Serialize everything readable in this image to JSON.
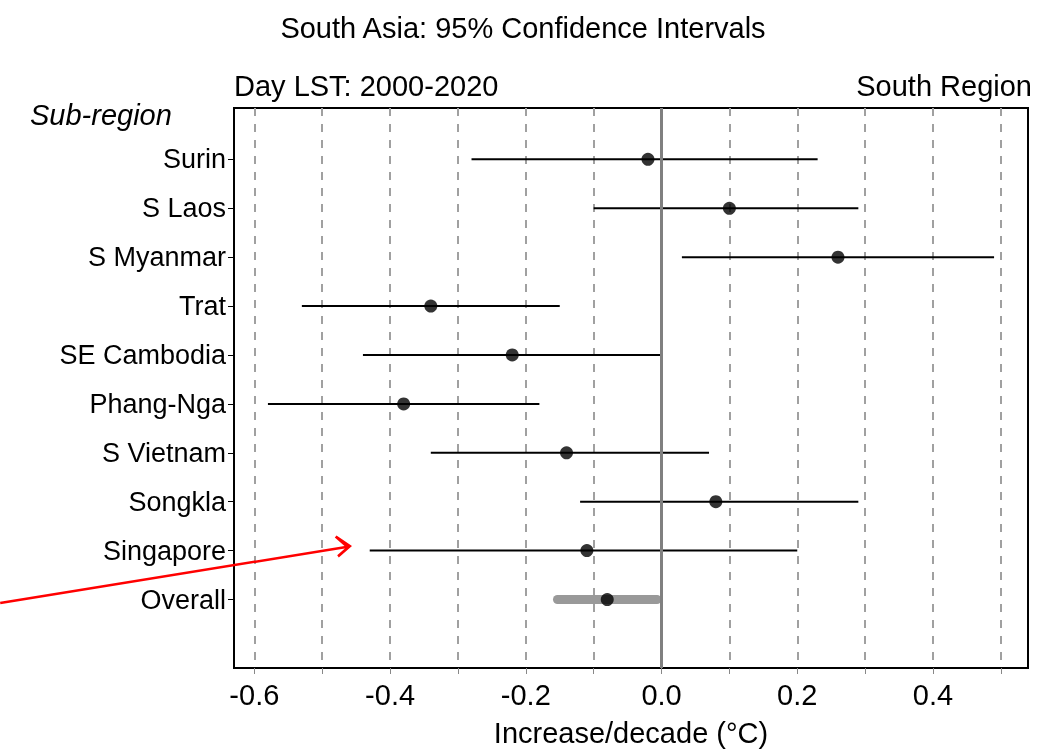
{
  "chart_data": {
    "type": "scatter",
    "title": "South Asia: 95% Confidence Intervals",
    "xlabel": "Increase/decade (°C)",
    "ylabel": "Sub-region",
    "annotations": [
      "Day LST: 2000-2020",
      "South Region"
    ],
    "categories": [
      "Surin",
      "S Laos",
      "S Myanmar",
      "Trat",
      "SE Cambodia",
      "Phang-Nga",
      "S Vietnam",
      "Songkla",
      "Singapore",
      "Overall"
    ],
    "series": [
      {
        "type": "bar",
        "color": "#999999",
        "values": [
          null,
          null,
          null,
          null,
          null,
          null,
          null,
          null,
          null,
          0.16
        ],
        "base": [
          null,
          null,
          null,
          null,
          null,
          null,
          null,
          null,
          null,
          -0.16
        ]
      },
      {
        "color": "#000000",
        "values": [
          -0.02,
          0.1,
          0.26,
          -0.34,
          -0.22,
          -0.38,
          -0.14,
          0.08,
          -0.11,
          -0.08
        ],
        "errors": [
          [
            -0.28,
            0.23
          ],
          [
            -0.1,
            0.29
          ],
          [
            0.03,
            0.49
          ],
          [
            -0.53,
            -0.15
          ],
          [
            -0.44,
            0.0
          ],
          [
            -0.58,
            -0.18
          ],
          [
            -0.34,
            0.07
          ],
          [
            -0.12,
            0.29
          ],
          [
            -0.43,
            0.2
          ],
          null
        ]
      }
    ],
    "xlim": [
      -0.63,
      0.54
    ],
    "orientation": "horizontal",
    "xticks": [
      {
        "value": -0.6,
        "label": "-0.6"
      },
      {
        "value": -0.5,
        "label": null
      },
      {
        "value": -0.4,
        "label": "-0.4"
      },
      {
        "value": -0.3,
        "label": null
      },
      {
        "value": -0.2,
        "label": "-0.2"
      },
      {
        "value": -0.1,
        "label": null
      },
      {
        "value": 0,
        "label": "0.0"
      },
      {
        "value": 0.1,
        "label": null
      },
      {
        "value": 0.2,
        "label": "0.2"
      },
      {
        "value": 0.3,
        "label": null
      },
      {
        "value": 0.4,
        "label": "0.4"
      },
      {
        "value": 0.5,
        "label": null
      }
    ],
    "ref_lines": [
      {
        "axis": "x",
        "value": 0,
        "color": "#808080"
      }
    ],
    "grid": "x",
    "marker": "circle"
  }
}
